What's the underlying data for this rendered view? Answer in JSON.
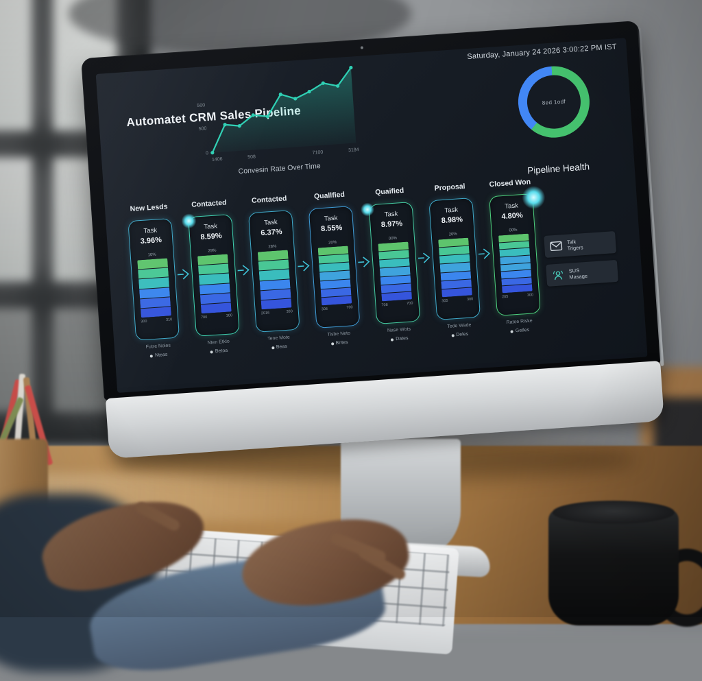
{
  "screen": {
    "datetime": "Saturday, January 24 2026 3:00:22 PM IST",
    "title": "Automatet CRM Sales Pipeline",
    "pipeline_health_label": "Pipeline Health",
    "donut_center_label": "8ed 1odf"
  },
  "colors": {
    "line": "#2fd0b4",
    "donut_green": "#45c16e",
    "donut_blue": "#4287f5",
    "arrow": "#3fc3d8",
    "bar_gradient": [
      "#5ec46d",
      "#49c795",
      "#3abdbd",
      "#3fa3dd",
      "#3b86ee",
      "#3a68e4",
      "#3555dc"
    ]
  },
  "chart_data": [
    {
      "type": "line",
      "title": "Convesin Rate Over Time",
      "x_ticks": [
        "1406",
        "508",
        "7100",
        "3184"
      ],
      "y_ticks": [
        "0",
        "500",
        "500"
      ],
      "x": [
        0,
        1,
        2,
        3,
        4,
        5,
        6,
        7,
        8,
        9,
        10
      ],
      "values": [
        0,
        36,
        33,
        46,
        43,
        71,
        64,
        72,
        82,
        77,
        100
      ],
      "area_fill": true,
      "grid": false,
      "legend": "none"
    },
    {
      "type": "pie",
      "title": "Pipeline Health",
      "center_label": "8ed 1odf",
      "slices": [
        {
          "label": "green",
          "value": 62,
          "color": "#45c16e"
        },
        {
          "label": "blue",
          "value": 38,
          "color": "#4287f5"
        }
      ]
    },
    {
      "type": "bar",
      "subtype": "stage-funnel-stacked-bars",
      "categories": [
        "New Lesds",
        "Contacted",
        "Contacted",
        "Quallfied",
        "Quaified",
        "Proposal",
        "Closed Won"
      ],
      "values": [
        "3.96%",
        "8.59%",
        "6.37%",
        "8.55%",
        "8.97%",
        "8.98%",
        "4.80%"
      ],
      "segments_per_bar": [
        6,
        6,
        6,
        7,
        7,
        7,
        8
      ]
    }
  ],
  "stages": [
    {
      "header": "New Lesds",
      "task_label": "Task",
      "percent": "3.96%",
      "bar_top_label": "10%",
      "bar_bottom_left": "300",
      "bar_bottom_right": "310",
      "note_line1": "Futre Noles",
      "note_line2": "Nteas",
      "accent": "#3fa9c9",
      "bar_segments": 6
    },
    {
      "header": "Contacted",
      "task_label": "Task",
      "percent": "8.59%",
      "bar_top_label": "29%",
      "bar_bottom_left": "700",
      "bar_bottom_right": "300",
      "note_line1": "Nten Etklo",
      "note_line2": "Betoa",
      "accent": "#3fd0b0",
      "bar_segments": 6
    },
    {
      "header": "Contacted",
      "task_label": "Task",
      "percent": "6.37%",
      "bar_top_label": "28%",
      "bar_bottom_left": "2016",
      "bar_bottom_right": "390",
      "note_line1": "Tene Mote",
      "note_line2": "Beas",
      "accent": "#3fa9c9",
      "bar_segments": 6
    },
    {
      "header": "Quallfied",
      "task_label": "Task",
      "percent": "8.55%",
      "bar_top_label": "20%",
      "bar_bottom_left": "308",
      "bar_bottom_right": "700",
      "note_line1": "Tisbe Neto",
      "note_line2": "Bntes",
      "accent": "#3f9bd6",
      "bar_segments": 7
    },
    {
      "header": "Quaified",
      "task_label": "Task",
      "percent": "8.97%",
      "bar_top_label": "00%",
      "bar_bottom_left": "708",
      "bar_bottom_right": "700",
      "note_line1": "Nase Wots",
      "note_line2": "Dates",
      "accent": "#44c9a0",
      "bar_segments": 7
    },
    {
      "header": "Proposal",
      "task_label": "Task",
      "percent": "8.98%",
      "bar_top_label": "20%",
      "bar_bottom_left": "305",
      "bar_bottom_right": "300",
      "note_line1": "Tede Wade",
      "note_line2": "Deles",
      "accent": "#3fa9c9",
      "bar_segments": 7
    },
    {
      "header": "Closed Won",
      "task_label": "Task",
      "percent": "4.80%",
      "bar_top_label": "00%",
      "bar_bottom_left": "205",
      "bar_bottom_right": "300",
      "note_line1": "Ratoe Riske",
      "note_line2": "Getles",
      "accent": "#4ed07e",
      "bar_segments": 8
    }
  ],
  "actions": [
    {
      "icon": "envelope-icon",
      "line1": "Talk",
      "line2": "Trigers"
    },
    {
      "icon": "broadcast-person-icon",
      "line1": "SUS",
      "line2": "Masage"
    }
  ]
}
